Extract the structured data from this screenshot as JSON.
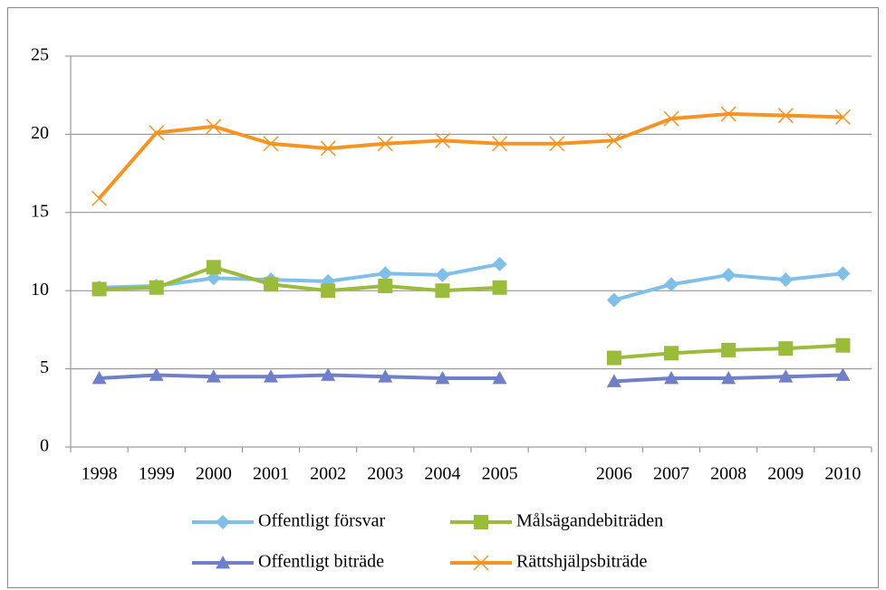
{
  "chart_data": {
    "type": "line",
    "categories": [
      "1998",
      "1999",
      "2000",
      "2001",
      "2002",
      "2003",
      "2004",
      "2005",
      null,
      "2006",
      "2007",
      "2008",
      "2009",
      "2010"
    ],
    "series": [
      {
        "name": "Offentligt försvar",
        "color": "#7fbfe8",
        "marker": "diamond",
        "values": [
          10.2,
          10.3,
          10.8,
          10.7,
          10.6,
          11.1,
          11.0,
          11.7,
          null,
          9.4,
          10.4,
          11.0,
          10.7,
          11.1
        ]
      },
      {
        "name": "Målsägandebiträden",
        "color": "#9bbb3b",
        "marker": "square",
        "values": [
          10.1,
          10.2,
          11.5,
          10.4,
          10.0,
          10.3,
          10.0,
          10.2,
          null,
          5.7,
          6.0,
          6.2,
          6.3,
          6.5
        ]
      },
      {
        "name": "Offentligt biträde",
        "color": "#6f7fc9",
        "marker": "triangle",
        "values": [
          4.4,
          4.6,
          4.5,
          4.5,
          4.6,
          4.5,
          4.4,
          4.4,
          null,
          4.2,
          4.4,
          4.4,
          4.5,
          4.6
        ]
      },
      {
        "name": "Rättshjälpsbiträde",
        "color": "#f79320",
        "marker": "x",
        "values": [
          15.9,
          20.1,
          20.5,
          19.4,
          19.1,
          19.4,
          19.6,
          19.4,
          19.4,
          19.6,
          21.0,
          21.3,
          21.2,
          21.1
        ]
      }
    ],
    "ylim": [
      0,
      25
    ],
    "yticks": [
      0,
      5,
      10,
      15,
      20,
      25
    ],
    "grid": true,
    "legend": "bottom"
  }
}
